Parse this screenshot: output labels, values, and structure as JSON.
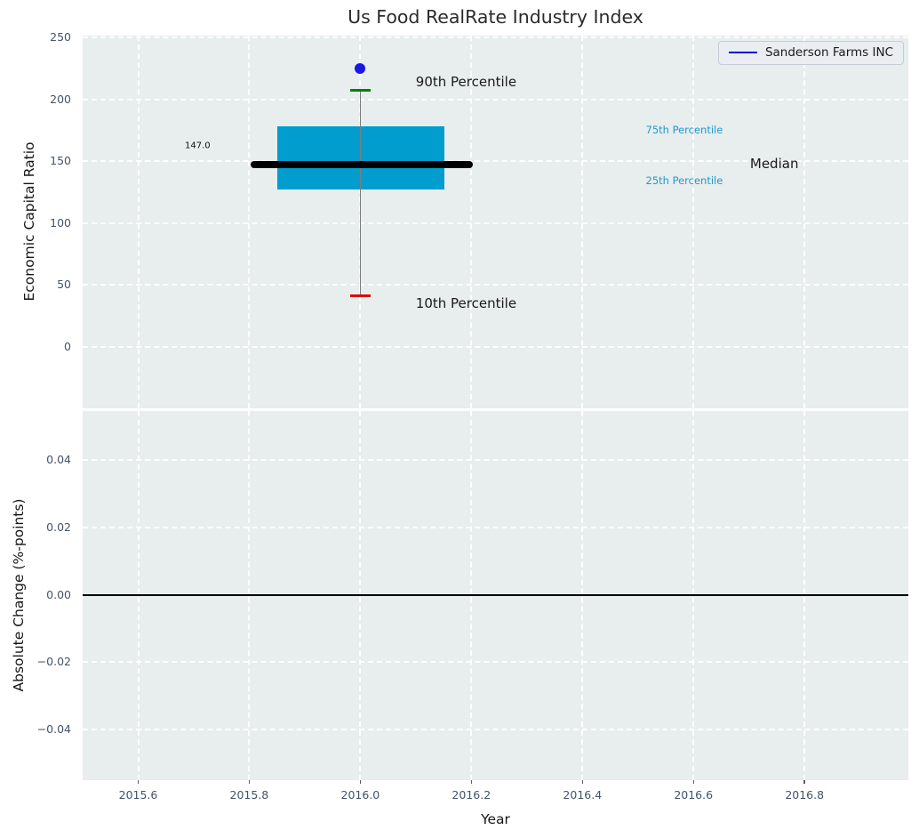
{
  "title": "Us Food RealRate Industry Index",
  "legend": {
    "label": "Sanderson Farms INC",
    "line_color": "#0000cc"
  },
  "x_axis": {
    "label": "Year",
    "xlim": [
      2015.5,
      2016.987
    ],
    "ticks": [
      2015.6,
      2015.8,
      2016.0,
      2016.2,
      2016.4,
      2016.6,
      2016.8
    ],
    "tick_labels": [
      "2015.6",
      "2015.8",
      "2016.0",
      "2016.2",
      "2016.4",
      "2016.6",
      "2016.8"
    ]
  },
  "colors": {
    "plot_bg": "#e8edee",
    "grid": "#ffffff",
    "box_fill": "#009dce",
    "median_line": "#000000",
    "whisker": "#7d7d7d",
    "p90_cap": "#008000",
    "p10_cap": "#dd0000",
    "company_point": "#1717e8",
    "tick_label": "#44536a",
    "zero_line": "#000000",
    "percentile_cyan": "#1f9acc",
    "text_dark": "#1a1a1a"
  },
  "chart_data": [
    {
      "type": "box",
      "title": "Us Food RealRate Industry Index",
      "ylabel": "Economic Capital Ratio",
      "ylim": [
        -50,
        251.4
      ],
      "yticks": [
        0,
        50,
        100,
        150,
        200,
        250
      ],
      "ytick_labels": [
        "0",
        "50",
        "100",
        "150",
        "200",
        "250"
      ],
      "grid": "white-dashed-on-gray",
      "legend_position": "upper-right",
      "x": 2016.0,
      "box": {
        "p10": 41,
        "q1": 127,
        "median": 147.0,
        "q3": 178,
        "p90": 207,
        "median_label": "147.0",
        "box_left": 2015.851,
        "box_right": 2016.151,
        "median_left": 2015.802,
        "median_right": 2016.202,
        "cap_halfwidth": 0.018
      },
      "company_point": {
        "name": "Sanderson Farms INC",
        "x": 2016.0,
        "y": 225
      },
      "annotations": [
        {
          "text": "90th Percentile",
          "x": 2016.1,
          "y": 214,
          "size": 15,
          "color": "#1a1a1a"
        },
        {
          "text": "10th Percentile",
          "x": 2016.1,
          "y": 35,
          "size": 15,
          "color": "#1a1a1a"
        },
        {
          "text": "75th Percentile",
          "x": 2016.514,
          "y": 175,
          "size": 11.5,
          "color": "#1f9acc"
        },
        {
          "text": "25th Percentile",
          "x": 2016.514,
          "y": 134,
          "size": 11.5,
          "color": "#1f9acc"
        },
        {
          "text": "Median",
          "x": 2016.702,
          "y": 148,
          "size": 15,
          "color": "#1a1a1a"
        },
        {
          "text": "147.0",
          "x": 2015.684,
          "y": 162,
          "size": 10,
          "color": "#111111"
        }
      ]
    },
    {
      "type": "line",
      "ylabel": "Absolute Change (%-points)",
      "ylim": [
        -0.055,
        0.0545
      ],
      "yticks": [
        0.04,
        0.02,
        0.0,
        -0.02,
        -0.04
      ],
      "ytick_labels": [
        "0.04",
        "0.02",
        "0.00",
        "−0.02",
        "−0.04"
      ],
      "zero_line": 0.0,
      "series": []
    }
  ]
}
